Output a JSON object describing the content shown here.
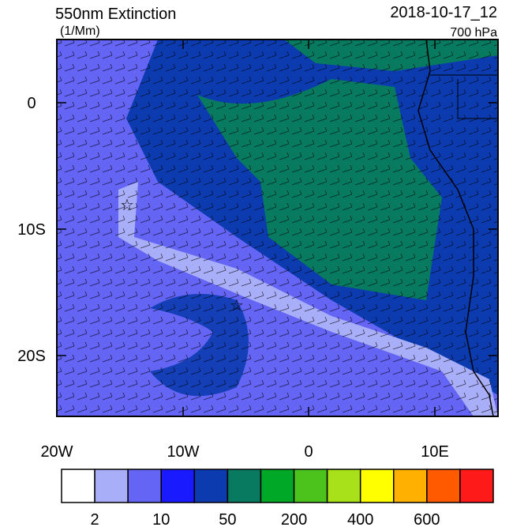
{
  "header": {
    "title": "550nm Extinction",
    "units": "(1/Mm)",
    "date": "2018-10-17_12",
    "level": "700 hPa"
  },
  "map": {
    "lat_labels": [
      "0",
      "10S",
      "20S"
    ],
    "lon_labels": [
      "20W",
      "10W",
      "0",
      "10E"
    ]
  },
  "colorbar": {
    "labels": [
      "2",
      "10",
      "50",
      "200",
      "400",
      "600"
    ],
    "colors": [
      "#ffffff",
      "#a9aef8",
      "#6464f5",
      "#1a1aff",
      "#0c3bb0",
      "#077a60",
      "#00a828",
      "#4cc21c",
      "#a8e01a",
      "#ffff00",
      "#ffb000",
      "#ff5a00",
      "#ff1a1a"
    ]
  }
}
